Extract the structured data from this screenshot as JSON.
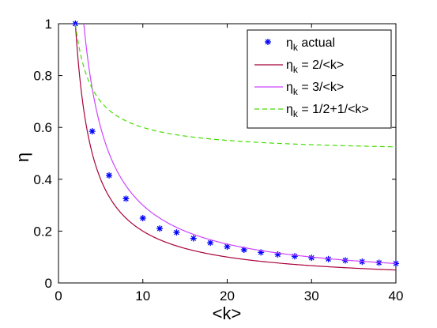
{
  "chart_data": {
    "type": "line",
    "xlabel": "<k>",
    "ylabel": "η",
    "xlim": [
      0,
      40
    ],
    "ylim": [
      0,
      1
    ],
    "xticks": [
      "0",
      "10",
      "20",
      "30",
      "40"
    ],
    "yticks": [
      "0",
      "0.2",
      "0.4",
      "0.6",
      "0.8",
      "1"
    ],
    "grid": false,
    "legend_position": "top-right",
    "series": [
      {
        "name_main": "η",
        "name_sub": "k",
        "name_rest": " actual",
        "style": "markers",
        "color": "#0000ff",
        "x": [
          2,
          4,
          6,
          8,
          10,
          12,
          14,
          16,
          18,
          20,
          22,
          24,
          26,
          28,
          30,
          32,
          34,
          36,
          38,
          40
        ],
        "y": [
          1.0,
          0.585,
          0.415,
          0.325,
          0.25,
          0.21,
          0.195,
          0.172,
          0.155,
          0.14,
          0.128,
          0.118,
          0.11,
          0.103,
          0.097,
          0.092,
          0.087,
          0.082,
          0.078,
          0.075
        ]
      },
      {
        "name_main": "η",
        "name_sub": "k",
        "name_rest": " = 2/<k>",
        "style": "solid",
        "color": "#a8003c",
        "formula": "2/x",
        "x_range": [
          2,
          40
        ]
      },
      {
        "name_main": "η",
        "name_sub": "k",
        "name_rest": " = 3/<k>",
        "style": "solid",
        "color": "#cc44ff",
        "formula": "3/x",
        "x_range": [
          3,
          40
        ]
      },
      {
        "name_main": "η",
        "name_sub": "k",
        "name_rest": " = 1/2+1/<k>",
        "style": "dashed",
        "color": "#44dd00",
        "formula": "0.5+1/x",
        "x_range": [
          2,
          40
        ]
      }
    ]
  }
}
